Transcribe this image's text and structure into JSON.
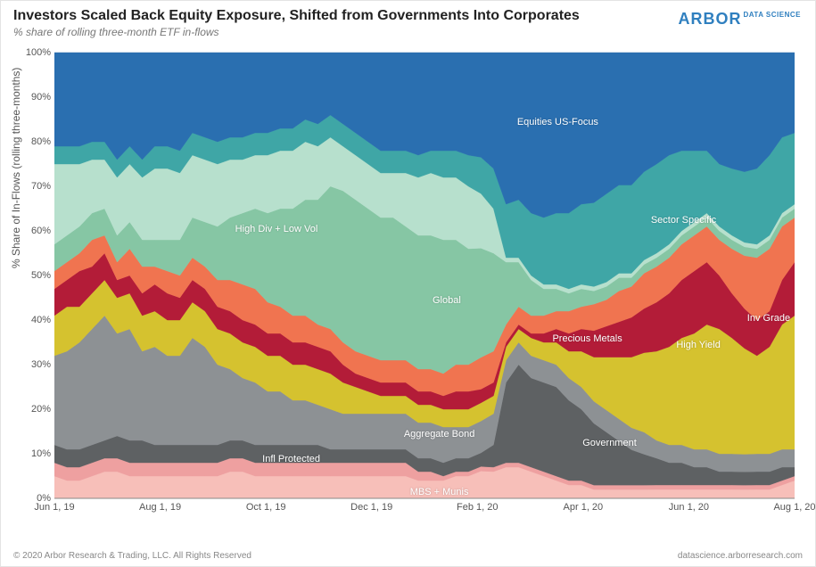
{
  "title": "Investors Scaled Back Equity Exposure, Shifted from Governments Into Corporates",
  "subtitle": "% share of rolling three-month ETF in-flows",
  "brand": {
    "name": "ARBOR",
    "sub": "DATA\nSCIENCE"
  },
  "footer": {
    "left": "© 2020 Arbor Research & Trading, LLC. All Rights Reserved",
    "right": "datascience.arborresearch.com"
  },
  "chart": {
    "type": "stacked-area",
    "ylabel": "% Share of In-Flows (rolling three-months)",
    "ylim": [
      0,
      100
    ],
    "ytick_step": 10,
    "ytick_suffix": "%",
    "background_color": "#ffffff",
    "grid_color": "#e9e9e9",
    "font_size_tick": 11,
    "x_categories": [
      "Jun 1, 19",
      "Aug 1, 19",
      "Oct 1, 19",
      "Dec 1, 19",
      "Feb 1, 20",
      "Apr 1, 20",
      "Jun 1, 20",
      "Aug 1, 20"
    ],
    "n_points": 60,
    "series": [
      {
        "name": "MBS + Munis",
        "color": "#f7bfb9",
        "label_xy": [
          0.52,
          0.01
        ]
      },
      {
        "name": "Infl Protected",
        "color": "#eea0a0",
        "label_xy": [
          0.32,
          0.085
        ]
      },
      {
        "name": "Government",
        "color": "#5e6163",
        "label_xy": [
          0.75,
          0.12
        ]
      },
      {
        "name": "Aggregate Bond",
        "color": "#8d9194",
        "label_xy": [
          0.52,
          0.14
        ]
      },
      {
        "name": "Inv Grade",
        "color": "#d5c22f",
        "label_xy": [
          0.965,
          0.4
        ]
      },
      {
        "name": "High Yield",
        "color": "#b31c38",
        "label_xy": [
          0.87,
          0.34
        ]
      },
      {
        "name": "Precious Metals",
        "color": "#f07450",
        "label_xy": [
          0.72,
          0.355
        ]
      },
      {
        "name": "Global",
        "color": "#86c6a4",
        "label_xy": [
          0.53,
          0.44
        ]
      },
      {
        "name": "High Div + Low Vol",
        "color": "#b7e0cd",
        "label_xy": [
          0.3,
          0.6
        ]
      },
      {
        "name": "Sector Specific",
        "color": "#3fa6a6",
        "label_xy": [
          0.85,
          0.62
        ]
      },
      {
        "name": "Equities US-Focus",
        "color": "#2a6fb0",
        "label_xy": [
          0.68,
          0.84
        ]
      }
    ],
    "values": [
      [
        5,
        4,
        4,
        5,
        6,
        6,
        5,
        5,
        5,
        5,
        5,
        5,
        5,
        5,
        6,
        6,
        5,
        5,
        5,
        5,
        5,
        5,
        5,
        5,
        5,
        5,
        5,
        5,
        5,
        4,
        4,
        4,
        5,
        5,
        6,
        6,
        7,
        7,
        6,
        5,
        4,
        3,
        3,
        2,
        2,
        2,
        2,
        2,
        2,
        2,
        2,
        2,
        2,
        2,
        2,
        2,
        2,
        2,
        3,
        4
      ],
      [
        3,
        3,
        3,
        3,
        3,
        3,
        3,
        3,
        3,
        3,
        3,
        3,
        3,
        3,
        3,
        3,
        3,
        3,
        3,
        3,
        3,
        3,
        3,
        3,
        3,
        3,
        3,
        3,
        3,
        2,
        2,
        1,
        1,
        1,
        1,
        1,
        1,
        1,
        1,
        1,
        1,
        1,
        1,
        1,
        1,
        1,
        1,
        1,
        1,
        1,
        1,
        1,
        1,
        1,
        1,
        1,
        1,
        1,
        1,
        1
      ],
      [
        4,
        4,
        4,
        4,
        4,
        5,
        5,
        5,
        4,
        4,
        4,
        4,
        4,
        4,
        4,
        4,
        4,
        4,
        4,
        4,
        4,
        4,
        3,
        3,
        3,
        3,
        3,
        3,
        3,
        3,
        3,
        3,
        3,
        3,
        3,
        5,
        18,
        22,
        20,
        20,
        20,
        18,
        16,
        14,
        12,
        10,
        8,
        7,
        6,
        5,
        5,
        4,
        4,
        3,
        3,
        3,
        3,
        3,
        3,
        2
      ],
      [
        20,
        22,
        24,
        26,
        28,
        23,
        25,
        20,
        22,
        20,
        20,
        24,
        22,
        18,
        16,
        14,
        14,
        12,
        12,
        10,
        10,
        9,
        9,
        8,
        8,
        8,
        8,
        8,
        8,
        8,
        8,
        8,
        7,
        7,
        7,
        7,
        5,
        5,
        5,
        5,
        5,
        5,
        5,
        5,
        5,
        5,
        5,
        5,
        4,
        4,
        4,
        4,
        4,
        4,
        4,
        4,
        4,
        4,
        4,
        4
      ],
      [
        9,
        10,
        8,
        8,
        8,
        8,
        8,
        8,
        8,
        8,
        8,
        8,
        8,
        8,
        8,
        8,
        8,
        8,
        8,
        8,
        8,
        8,
        8,
        7,
        6,
        5,
        4,
        4,
        4,
        4,
        4,
        4,
        4,
        4,
        4,
        4,
        3,
        3,
        4,
        4,
        5,
        6,
        8,
        10,
        12,
        14,
        16,
        18,
        20,
        22,
        24,
        26,
        28,
        28,
        26,
        24,
        22,
        24,
        28,
        30
      ],
      [
        6,
        6,
        8,
        6,
        6,
        4,
        4,
        5,
        6,
        6,
        5,
        5,
        5,
        5,
        5,
        5,
        5,
        5,
        5,
        5,
        5,
        5,
        5,
        4,
        3,
        3,
        3,
        3,
        3,
        3,
        3,
        3,
        4,
        4,
        3,
        3,
        1,
        1,
        1,
        2,
        3,
        4,
        5,
        6,
        7,
        8,
        9,
        10,
        11,
        12,
        13,
        14,
        14,
        12,
        10,
        9,
        8,
        8,
        10,
        12
      ],
      [
        4,
        4,
        4,
        6,
        4,
        4,
        6,
        6,
        4,
        5,
        5,
        5,
        5,
        6,
        7,
        8,
        8,
        7,
        6,
        6,
        6,
        5,
        5,
        5,
        5,
        5,
        5,
        5,
        5,
        5,
        5,
        5,
        6,
        6,
        7,
        7,
        4,
        4,
        4,
        4,
        4,
        5,
        5,
        6,
        6,
        7,
        7,
        8,
        8,
        8,
        8,
        8,
        8,
        8,
        10,
        12,
        14,
        14,
        12,
        10
      ],
      [
        6,
        6,
        6,
        6,
        6,
        6,
        6,
        6,
        6,
        7,
        8,
        9,
        10,
        12,
        14,
        16,
        18,
        20,
        22,
        24,
        26,
        28,
        32,
        34,
        34,
        33,
        32,
        32,
        30,
        30,
        30,
        30,
        28,
        26,
        24,
        22,
        14,
        10,
        8,
        6,
        5,
        4,
        4,
        3,
        3,
        3,
        2,
        2,
        2,
        2,
        2,
        2,
        2,
        2,
        2,
        2,
        2,
        2,
        2,
        2
      ],
      [
        18,
        16,
        14,
        12,
        11,
        13,
        13,
        14,
        16,
        16,
        15,
        14,
        14,
        14,
        13,
        12,
        12,
        13,
        13,
        13,
        13,
        12,
        11,
        10,
        10,
        10,
        10,
        10,
        12,
        13,
        14,
        14,
        14,
        14,
        12,
        10,
        1,
        1,
        1,
        1,
        1,
        1,
        1,
        1,
        1,
        1,
        1,
        1,
        1,
        1,
        1,
        1,
        1,
        1,
        1,
        1,
        1,
        1,
        1,
        1
      ],
      [
        4,
        4,
        4,
        4,
        4,
        4,
        4,
        4,
        5,
        5,
        5,
        5,
        5,
        5,
        5,
        5,
        5,
        5,
        5,
        5,
        5,
        5,
        5,
        5,
        5,
        5,
        5,
        5,
        5,
        5,
        5,
        6,
        6,
        7,
        8,
        9,
        12,
        13,
        14,
        15,
        16,
        17,
        18,
        19,
        20,
        20,
        20,
        20,
        20,
        20,
        18,
        16,
        14,
        14,
        15,
        16,
        17,
        18,
        17,
        16
      ],
      [
        21,
        21,
        21,
        20,
        20,
        24,
        21,
        24,
        21,
        21,
        22,
        18,
        19,
        20,
        19,
        19,
        18,
        18,
        17,
        17,
        15,
        16,
        14,
        16,
        18,
        20,
        22,
        22,
        22,
        23,
        22,
        22,
        22,
        23,
        23,
        26,
        34,
        33,
        36,
        37,
        36,
        36,
        34,
        34,
        32,
        30,
        30,
        27,
        25,
        23,
        22,
        22,
        22,
        25,
        26,
        27,
        26,
        23,
        19,
        18
      ]
    ]
  }
}
